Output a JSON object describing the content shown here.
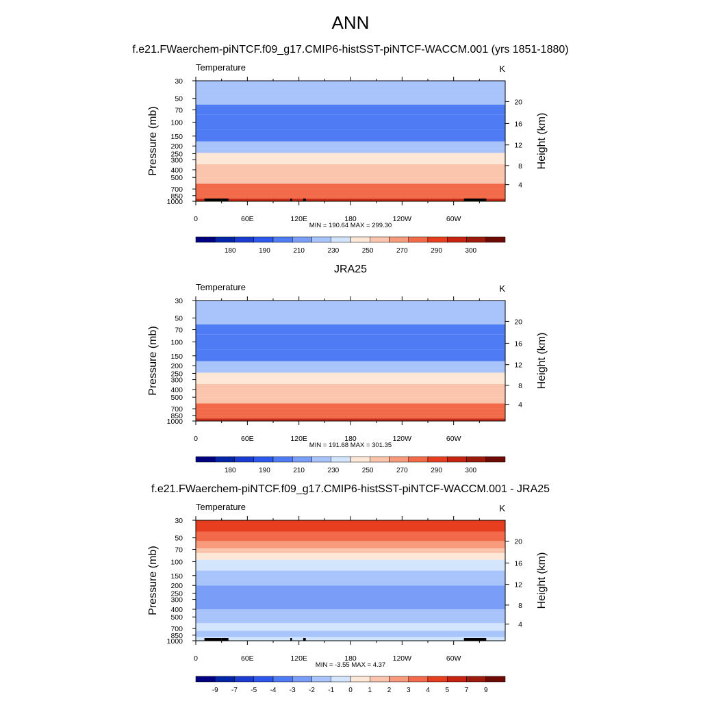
{
  "figure_title": "ANN",
  "chart_data": [
    {
      "type": "heatmap",
      "title": "f.e21.FWaerchem-piNTCF.f09_g17.CMIP6-histSST-piNTCF-WACCM.001 (yrs 1851-1880)",
      "left_string": "Temperature",
      "units": "K",
      "xlabel": "",
      "ylabel": "Pressure (mb)",
      "ylabel_right": "Height (km)",
      "x_ticklabels": [
        "0",
        "60E",
        "120E",
        "180",
        "120W",
        "60W"
      ],
      "y_ticklabels": [
        "30",
        "50",
        "70",
        "100",
        "150",
        "200",
        "250",
        "300",
        "400",
        "500",
        "700",
        "850",
        "1000"
      ],
      "height_ticklabels": [
        "4",
        "8",
        "12",
        "16",
        "20"
      ],
      "stats": "MIN = 190.64  MAX = 299.30",
      "min": 190.64,
      "max": 299.3,
      "colorbar_labels": [
        "180",
        "190",
        "210",
        "230",
        "250",
        "270",
        "290",
        "300"
      ],
      "colorbar_colors": [
        "#000080",
        "#0525A8",
        "#1A3CD2",
        "#2E57EE",
        "#4F7BF4",
        "#7A9EF7",
        "#A8C4FA",
        "#D2E5FC",
        "#FDE8D8",
        "#FBC5AD",
        "#F89A7C",
        "#F26A49",
        "#E63E1F",
        "#C62410",
        "#9E1A0C",
        "#6E0A06"
      ],
      "bands": [
        {
          "p": 30,
          "value": 222
        },
        {
          "p": 40,
          "value": 214
        },
        {
          "p": 60,
          "value": 205
        },
        {
          "p": 80,
          "value": 200
        },
        {
          "p": 125,
          "value": 205
        },
        {
          "p": 175,
          "value": 215
        },
        {
          "p": 215,
          "value": 225
        },
        {
          "p": 245,
          "value": 236
        },
        {
          "p": 290,
          "value": 246
        },
        {
          "p": 340,
          "value": 255
        },
        {
          "p": 420,
          "value": 262
        },
        {
          "p": 500,
          "value": 267
        },
        {
          "p": 600,
          "value": 272
        },
        {
          "p": 700,
          "value": 277
        },
        {
          "p": 780,
          "value": 282
        },
        {
          "p": 860,
          "value": 287
        },
        {
          "p": 930,
          "value": 291
        },
        {
          "p": 970,
          "value": 296
        }
      ],
      "topography": [
        [
          10,
          30
        ],
        [
          30,
          38
        ],
        [
          110,
          112
        ],
        [
          125,
          128
        ],
        [
          312,
          338
        ]
      ]
    },
    {
      "type": "heatmap",
      "title": "JRA25",
      "left_string": "Temperature",
      "units": "K",
      "xlabel": "",
      "ylabel": "Pressure (mb)",
      "ylabel_right": "Height (km)",
      "x_ticklabels": [
        "0",
        "60E",
        "120E",
        "180",
        "120W",
        "60W"
      ],
      "y_ticklabels": [
        "30",
        "50",
        "70",
        "100",
        "150",
        "200",
        "250",
        "300",
        "400",
        "500",
        "700",
        "850",
        "1000"
      ],
      "height_ticklabels": [
        "4",
        "8",
        "12",
        "16",
        "20"
      ],
      "stats": "MIN = 191.68  MAX = 301.35",
      "min": 191.68,
      "max": 301.35,
      "colorbar_labels": [
        "180",
        "190",
        "210",
        "230",
        "250",
        "270",
        "290",
        "300"
      ],
      "colorbar_colors": [
        "#000080",
        "#0525A8",
        "#1A3CD2",
        "#2E57EE",
        "#4F7BF4",
        "#7A9EF7",
        "#A8C4FA",
        "#D2E5FC",
        "#FDE8D8",
        "#FBC5AD",
        "#F89A7C",
        "#F26A49",
        "#E63E1F",
        "#C62410",
        "#9E1A0C",
        "#6E0A06"
      ],
      "bands": [
        {
          "p": 30,
          "value": 214
        },
        {
          "p": 60,
          "value": 205
        },
        {
          "p": 80,
          "value": 200
        },
        {
          "p": 125,
          "value": 205
        },
        {
          "p": 175,
          "value": 215
        },
        {
          "p": 215,
          "value": 225
        },
        {
          "p": 245,
          "value": 236
        },
        {
          "p": 290,
          "value": 246
        },
        {
          "p": 340,
          "value": 255
        },
        {
          "p": 420,
          "value": 262
        },
        {
          "p": 500,
          "value": 267
        },
        {
          "p": 600,
          "value": 272
        },
        {
          "p": 700,
          "value": 277
        },
        {
          "p": 780,
          "value": 282
        },
        {
          "p": 860,
          "value": 287
        },
        {
          "p": 930,
          "value": 293
        },
        {
          "p": 975,
          "value": 297
        }
      ],
      "topography": []
    },
    {
      "type": "heatmap",
      "title": "f.e21.FWaerchem-piNTCF.f09_g17.CMIP6-histSST-piNTCF-WACCM.001 - JRA25",
      "left_string": "Temperature",
      "units": "K",
      "xlabel": "",
      "ylabel": "Pressure (mb)",
      "ylabel_right": "Height (km)",
      "x_ticklabels": [
        "0",
        "60E",
        "120E",
        "180",
        "120W",
        "60W"
      ],
      "y_ticklabels": [
        "30",
        "50",
        "70",
        "100",
        "150",
        "200",
        "250",
        "300",
        "400",
        "500",
        "700",
        "850",
        "1000"
      ],
      "height_ticklabels": [
        "4",
        "8",
        "12",
        "16",
        "20"
      ],
      "stats": "MIN =  -3.55  MAX =   4.37",
      "min": -3.55,
      "max": 4.37,
      "colorbar_labels": [
        "-9",
        "-7",
        "-5",
        "-4",
        "-3",
        "-2",
        "-1",
        "0",
        "1",
        "2",
        "3",
        "4",
        "5",
        "7",
        "9"
      ],
      "colorbar_colors": [
        "#000080",
        "#0525A8",
        "#1A3CD2",
        "#2E57EE",
        "#4F7BF4",
        "#7A9EF7",
        "#A8C4FA",
        "#D2E5FC",
        "#FDE8D8",
        "#FBC5AD",
        "#F89A7C",
        "#F26A49",
        "#E63E1F",
        "#C62410",
        "#9E1A0C",
        "#6E0A06"
      ],
      "bands": [
        {
          "p": 30,
          "value": 4.5
        },
        {
          "p": 42,
          "value": 3.5
        },
        {
          "p": 55,
          "value": 2.5
        },
        {
          "p": 68,
          "value": 1.5
        },
        {
          "p": 78,
          "value": 0.5
        },
        {
          "p": 95,
          "value": -0.5
        },
        {
          "p": 130,
          "value": -1.5
        },
        {
          "p": 200,
          "value": -2.5
        },
        {
          "p": 400,
          "value": -1.5
        },
        {
          "p": 600,
          "value": -0.5
        },
        {
          "p": 750,
          "value": -1.5
        },
        {
          "p": 900,
          "value": -0.5
        }
      ],
      "topography": [
        [
          10,
          30
        ],
        [
          30,
          38
        ],
        [
          110,
          112
        ],
        [
          125,
          128
        ],
        [
          312,
          338
        ]
      ]
    }
  ]
}
